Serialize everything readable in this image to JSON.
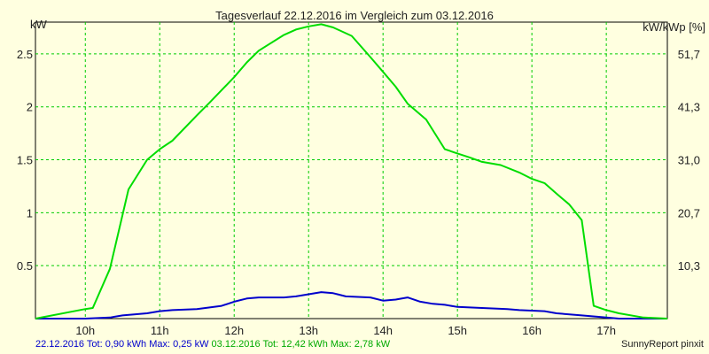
{
  "chart_data": {
    "type": "line",
    "title": "Tagesverlauf 22.12.2016 im Vergleich zum 03.12.2016",
    "ylabel_left": "kW",
    "ylabel_right": "kW/kWp [%]",
    "x_ticks": [
      {
        "label": "10h",
        "value": 10
      },
      {
        "label": "11h",
        "value": 11
      },
      {
        "label": "12h",
        "value": 12
      },
      {
        "label": "13h",
        "value": 13
      },
      {
        "label": "14h",
        "value": 14
      },
      {
        "label": "15h",
        "value": 15
      },
      {
        "label": "16h",
        "value": 16
      },
      {
        "label": "17h",
        "value": 17
      }
    ],
    "xlim": [
      9.33,
      17.82
    ],
    "ylim": [
      0,
      2.8
    ],
    "y_ticks_left": [
      {
        "label": "0.5",
        "value": 0.5
      },
      {
        "label": "1",
        "value": 1
      },
      {
        "label": "1.5",
        "value": 1.5
      },
      {
        "label": "2",
        "value": 2
      },
      {
        "label": "2.5",
        "value": 2.5
      }
    ],
    "y_ticks_right": [
      {
        "label": "10,3",
        "value": 0.5
      },
      {
        "label": "20,7",
        "value": 1
      },
      {
        "label": "31,0",
        "value": 1.5
      },
      {
        "label": "41,3",
        "value": 2
      },
      {
        "label": "51,7",
        "value": 2.5
      }
    ],
    "grid": true,
    "series": [
      {
        "label": "22.12.2016",
        "color": "#0000cc",
        "points": [
          [
            9.33,
            0
          ],
          [
            10.0,
            0
          ],
          [
            10.33,
            0.01
          ],
          [
            10.5,
            0.03
          ],
          [
            10.83,
            0.05
          ],
          [
            11.0,
            0.07
          ],
          [
            11.17,
            0.08
          ],
          [
            11.5,
            0.09
          ],
          [
            11.83,
            0.12
          ],
          [
            12.0,
            0.16
          ],
          [
            12.17,
            0.19
          ],
          [
            12.33,
            0.2
          ],
          [
            12.67,
            0.2
          ],
          [
            12.83,
            0.21
          ],
          [
            13.0,
            0.23
          ],
          [
            13.17,
            0.25
          ],
          [
            13.33,
            0.24
          ],
          [
            13.5,
            0.21
          ],
          [
            13.83,
            0.2
          ],
          [
            14.0,
            0.17
          ],
          [
            14.17,
            0.18
          ],
          [
            14.33,
            0.2
          ],
          [
            14.5,
            0.16
          ],
          [
            14.67,
            0.14
          ],
          [
            14.83,
            0.13
          ],
          [
            15.0,
            0.11
          ],
          [
            15.33,
            0.1
          ],
          [
            15.67,
            0.09
          ],
          [
            15.83,
            0.08
          ],
          [
            16.17,
            0.07
          ],
          [
            16.33,
            0.05
          ],
          [
            16.67,
            0.03
          ],
          [
            17.0,
            0.01
          ],
          [
            17.17,
            0
          ],
          [
            17.82,
            0
          ]
        ]
      },
      {
        "label": "03.12.2016",
        "color": "#00dd00",
        "points": [
          [
            9.33,
            0
          ],
          [
            10.0,
            0.09
          ],
          [
            10.1,
            0.1
          ],
          [
            10.33,
            0.47
          ],
          [
            10.58,
            1.22
          ],
          [
            10.83,
            1.5
          ],
          [
            11.0,
            1.6
          ],
          [
            11.17,
            1.68
          ],
          [
            11.5,
            1.92
          ],
          [
            11.67,
            2.04
          ],
          [
            12.0,
            2.28
          ],
          [
            12.17,
            2.42
          ],
          [
            12.33,
            2.53
          ],
          [
            12.67,
            2.68
          ],
          [
            12.83,
            2.73
          ],
          [
            13.0,
            2.76
          ],
          [
            13.17,
            2.78
          ],
          [
            13.33,
            2.75
          ],
          [
            13.58,
            2.67
          ],
          [
            13.83,
            2.47
          ],
          [
            14.0,
            2.33
          ],
          [
            14.17,
            2.19
          ],
          [
            14.33,
            2.03
          ],
          [
            14.58,
            1.88
          ],
          [
            14.83,
            1.6
          ],
          [
            15.0,
            1.56
          ],
          [
            15.17,
            1.52
          ],
          [
            15.33,
            1.48
          ],
          [
            15.58,
            1.45
          ],
          [
            15.83,
            1.38
          ],
          [
            16.0,
            1.32
          ],
          [
            16.17,
            1.28
          ],
          [
            16.33,
            1.18
          ],
          [
            16.5,
            1.08
          ],
          [
            16.67,
            0.93
          ],
          [
            16.83,
            0.12
          ],
          [
            17.0,
            0.08
          ],
          [
            17.17,
            0.05
          ],
          [
            17.5,
            0.01
          ],
          [
            17.82,
            0
          ]
        ]
      }
    ]
  },
  "footer": {
    "series1_summary": "22.12.2016 Tot: 0,90 kWh Max: 0,25 kW",
    "series2_summary": "03.12.2016 Tot: 12,42 kWh Max: 2,78 kW",
    "credit": "SunnyReport pinxit"
  }
}
